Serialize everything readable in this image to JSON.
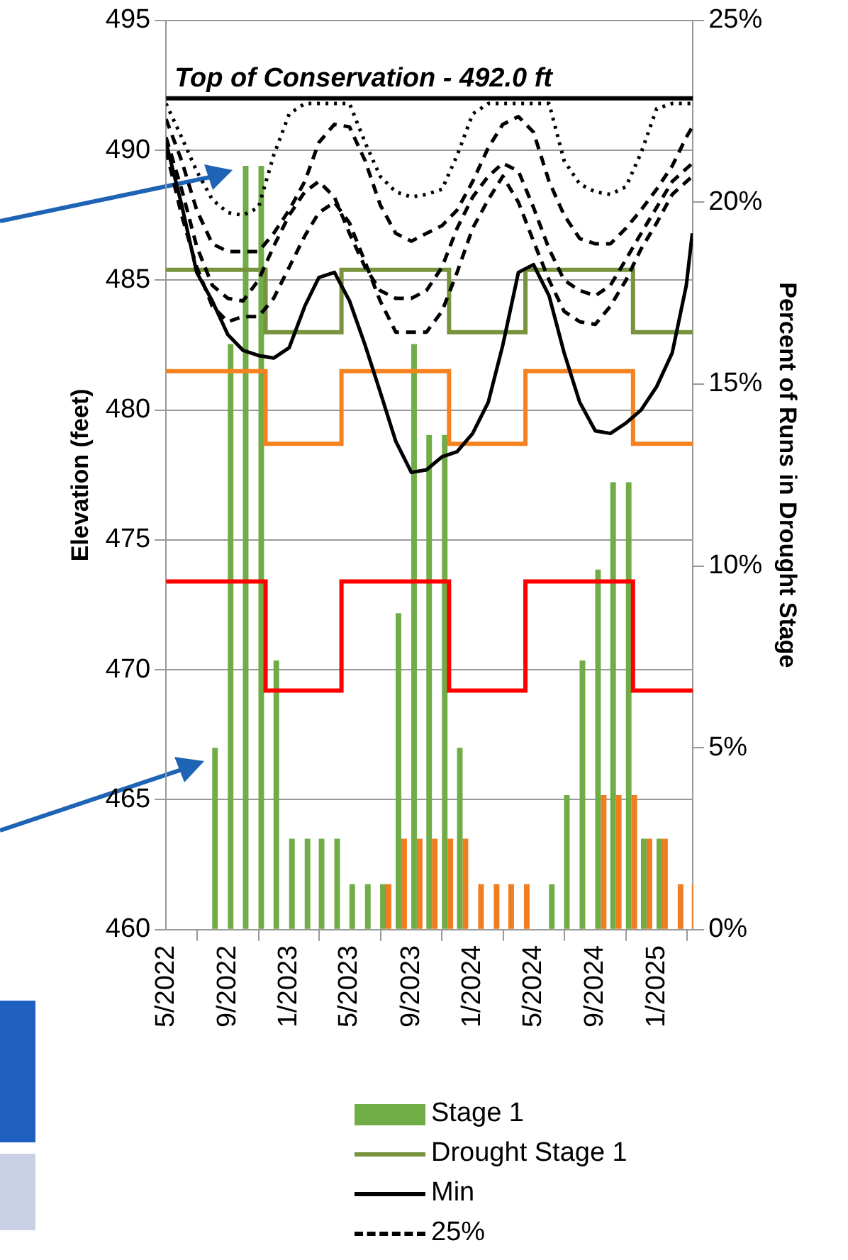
{
  "chart_data": {
    "type": "bar",
    "ylabel": "Elevation (feet)",
    "y2label": "Percent of Runs in Drought Stage",
    "x": [
      "2022-08-12",
      "2022-09-12",
      "2022-10-12",
      "2022-11-12",
      "2022-12-12",
      "2023-01-12",
      "2023-02-12",
      "2023-03-12",
      "2023-04-12",
      "2023-05-12",
      "2023-06-12",
      "2023-07-12",
      "2023-08-12",
      "2023-09-12",
      "2023-10-12",
      "2023-11-12",
      "2023-12-12",
      "2024-01-12",
      "2024-02-12",
      "2024-03-12",
      "2024-04-12",
      "2024-05-12",
      "2024-06-12",
      "2024-07-12",
      "2024-08-12",
      "2024-09-12",
      "2024-10-12",
      "2024-11-12",
      "2024-12-12",
      "2025-01-12",
      "2025-02-12",
      "2025-03-12"
    ],
    "xlim": [
      "2022-05-01",
      "2025-03-14"
    ],
    "xticks": [
      {
        "value": "2022-05",
        "label": "5/2022"
      },
      {
        "value": "2022-09",
        "label": "9/2022"
      },
      {
        "value": "2023-01",
        "label": "1/2023"
      },
      {
        "value": "2023-05",
        "label": "5/2023"
      },
      {
        "value": "2023-09",
        "label": "9/2023"
      },
      {
        "value": "2024-01",
        "label": "1/2024"
      },
      {
        "value": "2024-05",
        "label": "5/2024"
      },
      {
        "value": "2024-09",
        "label": "9/2024"
      },
      {
        "value": "2025-01",
        "label": "1/2025"
      }
    ],
    "ylim": [
      460,
      495
    ],
    "yticks": [
      460,
      465,
      470,
      475,
      480,
      485,
      490,
      495
    ],
    "y2lim": [
      0,
      25
    ],
    "y2ticks": [
      {
        "value": 0,
        "label": "0%"
      },
      {
        "value": 5,
        "label": "5%"
      },
      {
        "value": 10,
        "label": "10%"
      },
      {
        "value": 15,
        "label": "15%"
      },
      {
        "value": 20,
        "label": "20%"
      },
      {
        "value": 25,
        "label": "25%"
      }
    ],
    "grid": "y",
    "legend": "bottom",
    "ref_lines": [
      {
        "axis": "y",
        "value": 492,
        "label": "Top of Conservation - 492.0 ft",
        "color": "#000000"
      }
    ],
    "series": [
      {
        "name": "Stage 1",
        "axis": "y2",
        "color": "#70ad47",
        "values": [
          5,
          16.1,
          21,
          21,
          7.4,
          2.5,
          2.5,
          2.5,
          2.5,
          1.25,
          1.25,
          1.25,
          8.7,
          16.1,
          13.6,
          13.6,
          5,
          0,
          0,
          0,
          0,
          0,
          1.25,
          3.7,
          7.4,
          9.9,
          12.3,
          12.3,
          2.5,
          2.5,
          0,
          0
        ]
      },
      {
        "axis": "y2",
        "color": "#f07d1f",
        "values": [
          0,
          0,
          0,
          0,
          0,
          0,
          0,
          0,
          0,
          0,
          0,
          1.25,
          2.5,
          2.5,
          2.5,
          2.5,
          2.5,
          1.25,
          1.25,
          1.25,
          1.25,
          0,
          0,
          0,
          0,
          3.7,
          3.7,
          3.7,
          2.5,
          2.5,
          1.25,
          1.25
        ]
      },
      {
        "name": "Drought Stage 1",
        "type": "step",
        "color": "#77933c",
        "x": [
          "2022-05-01",
          "2022-11-15",
          "2023-04-15",
          "2023-11-15",
          "2024-04-15",
          "2024-11-15",
          "2025-03-14"
        ],
        "values": [
          485.4,
          483,
          485.4,
          483,
          485.4,
          483,
          483
        ]
      },
      {
        "type": "step",
        "color": "#f5821f",
        "x": [
          "2022-05-01",
          "2022-11-15",
          "2023-04-15",
          "2023-11-15",
          "2024-04-15",
          "2024-11-15",
          "2025-03-14"
        ],
        "values": [
          481.5,
          478.7,
          481.5,
          478.7,
          481.5,
          478.7,
          478.7
        ]
      },
      {
        "type": "step",
        "color": "#ff0000",
        "x": [
          "2022-05-01",
          "2022-11-15",
          "2023-04-15",
          "2023-11-15",
          "2024-04-15",
          "2024-11-15",
          "2025-03-14"
        ],
        "values": [
          473.4,
          469.2,
          473.4,
          469.2,
          473.4,
          469.2,
          469.2
        ]
      },
      {
        "name": "Min",
        "type": "line",
        "color": "#000000",
        "line_style": "solid",
        "x": [
          "2022-05-01",
          "2022-06-01",
          "2022-07-01",
          "2022-08-01",
          "2022-09-01",
          "2022-10-01",
          "2022-11-01",
          "2022-12-01",
          "2023-01-01",
          "2023-02-01",
          "2023-03-01",
          "2023-04-01",
          "2023-05-01",
          "2023-06-01",
          "2023-07-01",
          "2023-08-01",
          "2023-09-01",
          "2023-10-01",
          "2023-11-01",
          "2023-12-01",
          "2024-01-01",
          "2024-02-01",
          "2024-03-01",
          "2024-04-01",
          "2024-05-01",
          "2024-06-01",
          "2024-07-01",
          "2024-08-01",
          "2024-09-01",
          "2024-10-01",
          "2024-11-01",
          "2024-12-01",
          "2025-01-01",
          "2025-02-01",
          "2025-03-01",
          "2025-03-13"
        ],
        "values": [
          490.3,
          487.9,
          485.3,
          484.2,
          482.9,
          482.3,
          482.1,
          482,
          482.4,
          484,
          485.1,
          485.3,
          484.2,
          482.5,
          480.7,
          478.8,
          477.6,
          477.7,
          478.2,
          478.4,
          479.1,
          480.3,
          482.5,
          485.3,
          485.6,
          484.4,
          482.2,
          480.3,
          479.2,
          479.1,
          479.5,
          480,
          480.9,
          482.2,
          484.8,
          486.8
        ]
      },
      {
        "name": "25%",
        "type": "line",
        "color": "#000000",
        "line_style": "dashed",
        "x": [
          "2022-05-01",
          "2022-06-01",
          "2022-07-01",
          "2022-08-01",
          "2022-09-01",
          "2022-10-01",
          "2022-11-01",
          "2022-12-01",
          "2023-01-01",
          "2023-02-01",
          "2023-03-01",
          "2023-04-01",
          "2023-05-01",
          "2023-06-01",
          "2023-07-01",
          "2023-08-01",
          "2023-09-01",
          "2023-10-01",
          "2023-11-01",
          "2023-12-01",
          "2024-01-01",
          "2024-02-01",
          "2024-03-01",
          "2024-04-01",
          "2024-05-01",
          "2024-06-01",
          "2024-07-01",
          "2024-08-01",
          "2024-09-01",
          "2024-10-01",
          "2024-11-01",
          "2024-12-01",
          "2025-01-01",
          "2025-02-01",
          "2025-03-13"
        ],
        "values": [
          490,
          487.5,
          485.5,
          484,
          483.4,
          483.6,
          483.6,
          484.3,
          485.5,
          486.7,
          487.6,
          488,
          487.2,
          485.7,
          484.2,
          483,
          483,
          483,
          483.8,
          485.3,
          487,
          488.1,
          489,
          488,
          486.5,
          485,
          483.8,
          483.4,
          483.3,
          484,
          485,
          486.2,
          487.2,
          488.3,
          489
        ]
      },
      {
        "type": "line",
        "color": "#000000",
        "line_style": "dashed",
        "x": [
          "2022-05-01",
          "2022-06-01",
          "2022-07-01",
          "2022-08-01",
          "2022-09-01",
          "2022-10-01",
          "2022-11-01",
          "2022-12-01",
          "2023-01-01",
          "2023-02-01",
          "2023-03-01",
          "2023-04-01",
          "2023-05-01",
          "2023-06-01",
          "2023-07-01",
          "2023-08-01",
          "2023-09-01",
          "2023-10-01",
          "2023-11-01",
          "2023-12-01",
          "2024-01-01",
          "2024-02-01",
          "2024-03-01",
          "2024-04-01",
          "2024-05-01",
          "2024-06-01",
          "2024-07-01",
          "2024-08-01",
          "2024-09-01",
          "2024-10-01",
          "2024-11-01",
          "2024-12-01",
          "2025-01-01",
          "2025-02-01",
          "2025-03-13"
        ],
        "values": [
          490.5,
          488.5,
          486.3,
          484.8,
          484.3,
          484.2,
          485,
          486.3,
          487.5,
          488.4,
          488.8,
          488.2,
          486.8,
          485.5,
          484.6,
          484.3,
          484.3,
          484.6,
          485.5,
          487,
          488.2,
          489,
          489.5,
          489.2,
          487.8,
          486.2,
          485,
          484.6,
          484.4,
          484.8,
          485.8,
          486.8,
          487.8,
          488.8,
          489.5
        ]
      },
      {
        "type": "line",
        "color": "#000000",
        "line_style": "dashed",
        "x": [
          "2022-05-01",
          "2022-06-01",
          "2022-07-01",
          "2022-08-01",
          "2022-09-01",
          "2022-10-01",
          "2022-11-01",
          "2022-12-01",
          "2023-01-01",
          "2023-02-01",
          "2023-03-01",
          "2023-04-01",
          "2023-05-01",
          "2023-06-01",
          "2023-07-01",
          "2023-08-01",
          "2023-09-01",
          "2023-10-01",
          "2023-11-01",
          "2023-12-01",
          "2024-01-01",
          "2024-02-01",
          "2024-03-01",
          "2024-04-01",
          "2024-05-01",
          "2024-06-01",
          "2024-07-01",
          "2024-08-01",
          "2024-09-01",
          "2024-10-01",
          "2024-11-01",
          "2024-12-01",
          "2025-01-01",
          "2025-02-01",
          "2025-03-01",
          "2025-03-13"
        ],
        "values": [
          491.2,
          489.6,
          487.7,
          486.4,
          486.1,
          486.1,
          486.1,
          486.8,
          487.7,
          488.8,
          490.3,
          491,
          490.9,
          489.6,
          487.9,
          486.8,
          486.5,
          486.8,
          487.1,
          487.7,
          488.8,
          490.1,
          491,
          491.3,
          490.7,
          488.8,
          487.5,
          486.6,
          486.4,
          486.4,
          487,
          487.7,
          488.5,
          489.4,
          490.5,
          490.9
        ]
      },
      {
        "type": "line",
        "color": "#000000",
        "line_style": "dotted",
        "x": [
          "2022-05-01",
          "2022-06-01",
          "2022-07-01",
          "2022-08-01",
          "2022-09-01",
          "2022-10-01",
          "2022-11-01",
          "2022-12-01",
          "2023-01-01",
          "2023-02-01",
          "2023-03-01",
          "2023-04-01",
          "2023-05-01",
          "2023-06-01",
          "2023-07-01",
          "2023-08-01",
          "2023-09-01",
          "2023-10-01",
          "2023-11-01",
          "2023-12-01",
          "2024-01-01",
          "2024-02-01",
          "2024-03-01",
          "2024-04-01",
          "2024-05-01",
          "2024-06-01",
          "2024-07-01",
          "2024-08-01",
          "2024-09-01",
          "2024-10-01",
          "2024-11-01",
          "2024-12-01",
          "2025-01-01",
          "2025-02-01",
          "2025-03-01",
          "2025-03-13"
        ],
        "values": [
          491.8,
          490.5,
          489.2,
          488.1,
          487.6,
          487.5,
          487.8,
          489.8,
          491.4,
          491.8,
          491.8,
          491.8,
          491.8,
          490.3,
          489,
          488.4,
          488.2,
          488.3,
          488.5,
          489.8,
          491.4,
          491.8,
          491.8,
          491.8,
          491.8,
          491.8,
          489.6,
          488.7,
          488.4,
          488.3,
          488.6,
          489.9,
          491.6,
          491.8,
          491.8,
          491.8
        ]
      }
    ]
  }
}
